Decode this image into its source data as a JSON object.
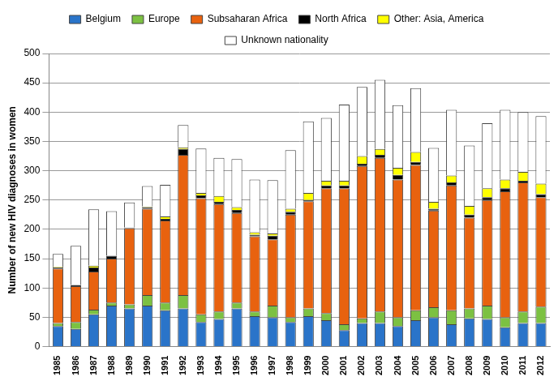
{
  "chart_data": {
    "type": "bar",
    "y_label": "Number of new HIV diagnoses in women",
    "categories": [
      "1985",
      "1986",
      "1987",
      "1988",
      "1989",
      "1990",
      "1991",
      "1992",
      "1993",
      "1994",
      "1995",
      "1996",
      "1997",
      "1998",
      "1999",
      "2000",
      "2001",
      "2002",
      "2003",
      "2004",
      "2005",
      "2006",
      "2007",
      "2008",
      "2009",
      "2010",
      "2011",
      "2012"
    ],
    "stacked": true,
    "grid": true,
    "legend": "top",
    "ylim": [
      0,
      500
    ],
    "yticks": [
      0,
      50,
      100,
      150,
      200,
      250,
      300,
      350,
      400,
      450,
      500
    ],
    "series": [
      {
        "name": "Belgium",
        "color": "#2a74c9",
        "values": [
          35,
          30,
          55,
          70,
          65,
          70,
          62,
          65,
          42,
          47,
          65,
          52,
          50,
          42,
          52,
          45,
          28,
          40,
          40,
          35,
          45,
          50,
          38,
          48,
          47,
          33,
          40,
          40
        ]
      },
      {
        "name": "Europe",
        "color": "#7cc142",
        "values": [
          5,
          12,
          8,
          5,
          7,
          18,
          13,
          23,
          13,
          13,
          10,
          8,
          20,
          8,
          13,
          12,
          10,
          8,
          20,
          15,
          17,
          17,
          24,
          17,
          23,
          17,
          20,
          28
        ]
      },
      {
        "name": "Subsaharan Africa",
        "color": "#e8620f",
        "values": [
          93,
          61,
          65,
          75,
          130,
          147,
          140,
          239,
          198,
          183,
          153,
          128,
          113,
          175,
          183,
          213,
          232,
          260,
          262,
          235,
          248,
          165,
          213,
          155,
          180,
          215,
          220,
          187
        ]
      },
      {
        "name": "North Africa",
        "color": "#000000",
        "values": [
          2,
          2,
          7,
          5,
          1,
          3,
          3,
          10,
          5,
          4,
          5,
          3,
          6,
          5,
          2,
          5,
          5,
          4,
          5,
          8,
          5,
          3,
          5,
          5,
          5,
          5,
          3,
          5
        ]
      },
      {
        "name": "Other: Asia, America",
        "color": "#ffff00",
        "values": [
          1,
          0,
          3,
          0,
          0,
          1,
          4,
          3,
          4,
          10,
          5,
          4,
          4,
          5,
          12,
          8,
          8,
          13,
          10,
          12,
          17,
          12,
          12,
          15,
          15,
          15,
          15,
          18
        ]
      },
      {
        "name": "Unknown nationality",
        "color": "#ffffff",
        "values": [
          22,
          67,
          96,
          76,
          43,
          35,
          54,
          38,
          76,
          65,
          82,
          90,
          91,
          100,
          122,
          107,
          130,
          118,
          118,
          107,
          109,
          92,
          112,
          103,
          111,
          119,
          102,
          115
        ]
      }
    ]
  }
}
